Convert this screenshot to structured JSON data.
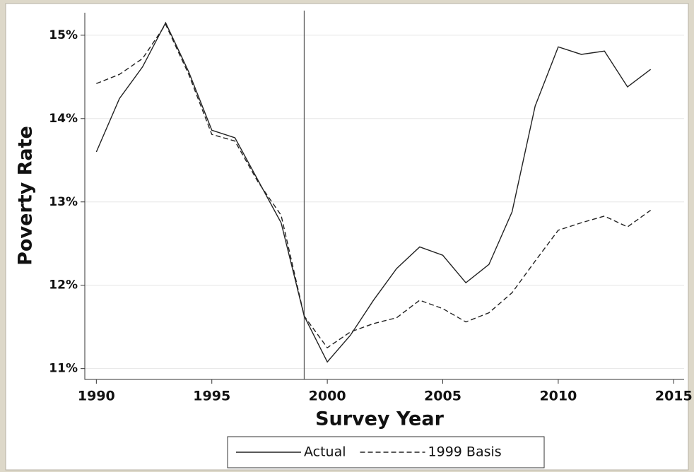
{
  "chart_data": {
    "type": "line",
    "x_label": "Survey Year",
    "y_label": "Poverty Rate",
    "x": [
      1990,
      1991,
      1992,
      1993,
      1994,
      1995,
      1996,
      1997,
      1998,
      1999,
      2000,
      2001,
      2002,
      2003,
      2004,
      2005,
      2006,
      2007,
      2008,
      2009,
      2010,
      2011,
      2012,
      2013,
      2014
    ],
    "series": [
      {
        "name": "Actual",
        "color": "#222222",
        "dash": "solid",
        "values": [
          13.6,
          14.24,
          14.62,
          15.15,
          14.56,
          13.86,
          13.77,
          13.26,
          12.75,
          11.63,
          11.08,
          11.4,
          11.82,
          12.2,
          12.46,
          12.36,
          12.03,
          12.25,
          12.88,
          14.15,
          14.86,
          14.77,
          14.81,
          14.38,
          14.59
        ]
      },
      {
        "name": "1999 Basis",
        "color": "#222222",
        "dash": "dashed",
        "values": [
          14.42,
          14.53,
          14.72,
          15.13,
          14.53,
          13.81,
          13.73,
          13.24,
          12.84,
          11.63,
          11.25,
          11.44,
          11.54,
          11.61,
          11.82,
          11.72,
          11.56,
          11.67,
          11.91,
          12.29,
          12.66,
          12.75,
          12.83,
          12.7,
          12.9
        ]
      }
    ],
    "xlim": [
      1989.5,
      2015.45
    ],
    "xticks": [
      1990,
      1995,
      2000,
      2005,
      2010,
      2015
    ],
    "ylim": [
      10.87,
      15.27
    ],
    "yticks": [
      {
        "value": 11,
        "label": "11%"
      },
      {
        "value": 12,
        "label": "12%"
      },
      {
        "value": 13,
        "label": "13%"
      },
      {
        "value": 14,
        "label": "14%"
      },
      {
        "value": 15,
        "label": "15%"
      }
    ],
    "vline": 1999,
    "grid": true,
    "legend": "bottom"
  }
}
